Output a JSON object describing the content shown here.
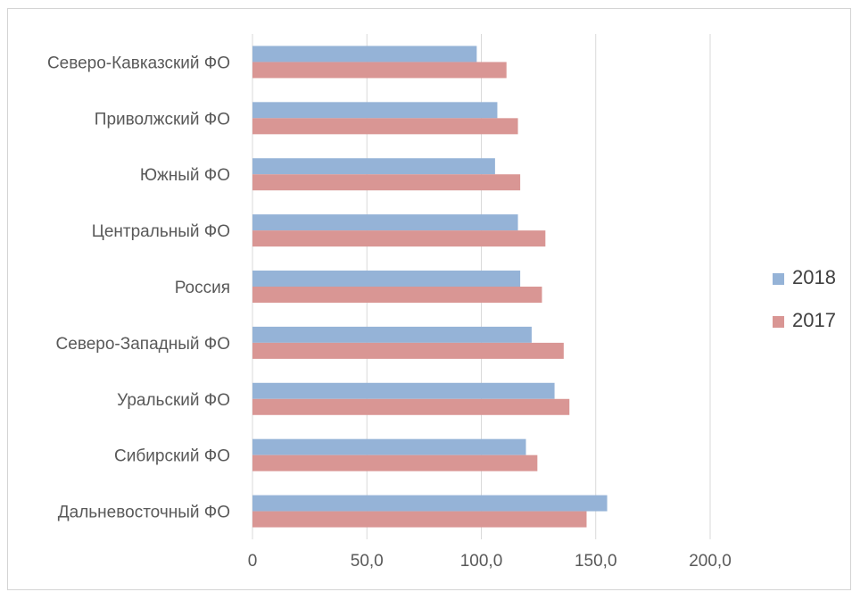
{
  "chart_data": {
    "type": "bar",
    "orientation": "horizontal",
    "categories": [
      "Северо-Кавказский ФО",
      "Приволжский ФО",
      "Южный ФО",
      "Центральный ФО",
      "Россия",
      "Северо-Западный ФО",
      "Уральский ФО",
      "Сибирский ФО",
      "Дальневосточный ФО"
    ],
    "series": [
      {
        "name": "2018",
        "color": "#95b3d7",
        "values": [
          98.0,
          107.0,
          106.0,
          116.0,
          117.0,
          122.0,
          132.0,
          119.5,
          155.0
        ]
      },
      {
        "name": "2017",
        "color": "#d99694",
        "values": [
          111.0,
          116.0,
          117.0,
          128.0,
          126.5,
          136.0,
          138.5,
          124.5,
          146.0
        ]
      }
    ],
    "xlim": [
      0,
      200
    ],
    "x_ticks": [
      "0",
      "50,0",
      "100,0",
      "150,0",
      "200,0"
    ],
    "grid": "vertical",
    "legend": "right"
  }
}
